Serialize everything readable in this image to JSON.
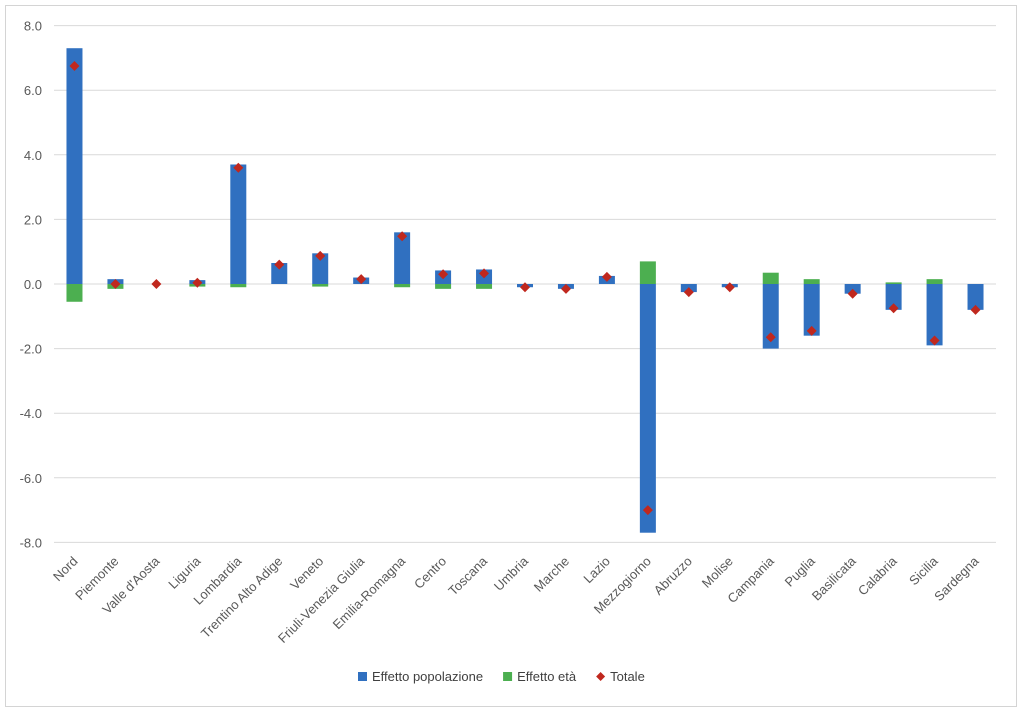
{
  "chart_data": {
    "type": "bar",
    "categories": [
      "Nord",
      "Piemonte",
      "Valle d'Aosta",
      "Liguria",
      "Lombardia",
      "Trentino Alto Adige",
      "Veneto",
      "Friuli-Venezia Giulia",
      "Emilia-Romagna",
      "Centro",
      "Toscana",
      "Umbria",
      "Marche",
      "Lazio",
      "Mezzogiorno",
      "Abruzzo",
      "Molise",
      "Campania",
      "Puglia",
      "Basilicata",
      "Calabria",
      "Sicilia",
      "Sardegna"
    ],
    "series": [
      {
        "name": "Effetto popolazione",
        "kind": "bar",
        "color": "#3070c0",
        "values": [
          7.3,
          0.15,
          0.0,
          0.12,
          3.7,
          0.65,
          0.95,
          0.2,
          1.6,
          0.42,
          0.45,
          -0.1,
          -0.15,
          0.25,
          -7.7,
          -0.25,
          -0.1,
          -2.0,
          -1.6,
          -0.3,
          -0.8,
          -1.9,
          -0.8
        ]
      },
      {
        "name": "Effetto età",
        "kind": "bar",
        "color": "#4caf50",
        "values": [
          -0.55,
          -0.15,
          0.0,
          -0.08,
          -0.1,
          0.0,
          -0.08,
          0.0,
          -0.1,
          -0.15,
          -0.15,
          0.0,
          0.0,
          0.0,
          0.7,
          0.0,
          0.0,
          0.35,
          0.15,
          0.0,
          0.05,
          0.15,
          0.0
        ]
      },
      {
        "name": "Totale",
        "kind": "marker",
        "color": "#c0281e",
        "values": [
          6.75,
          0.0,
          0.0,
          0.04,
          3.6,
          0.6,
          0.87,
          0.15,
          1.48,
          0.3,
          0.33,
          -0.1,
          -0.15,
          0.22,
          -7.0,
          -0.25,
          -0.1,
          -1.65,
          -1.45,
          -0.3,
          -0.75,
          -1.75,
          -0.8
        ]
      }
    ],
    "yticks": [
      "8.0",
      "6.0",
      "4.0",
      "2.0",
      "0.0",
      "-2.0",
      "-4.0",
      "-6.0",
      "-8.0"
    ],
    "ylim": [
      -8,
      8
    ],
    "grid": true,
    "legend": "bottom-center",
    "title": "",
    "xlabel": "",
    "ylabel": ""
  }
}
